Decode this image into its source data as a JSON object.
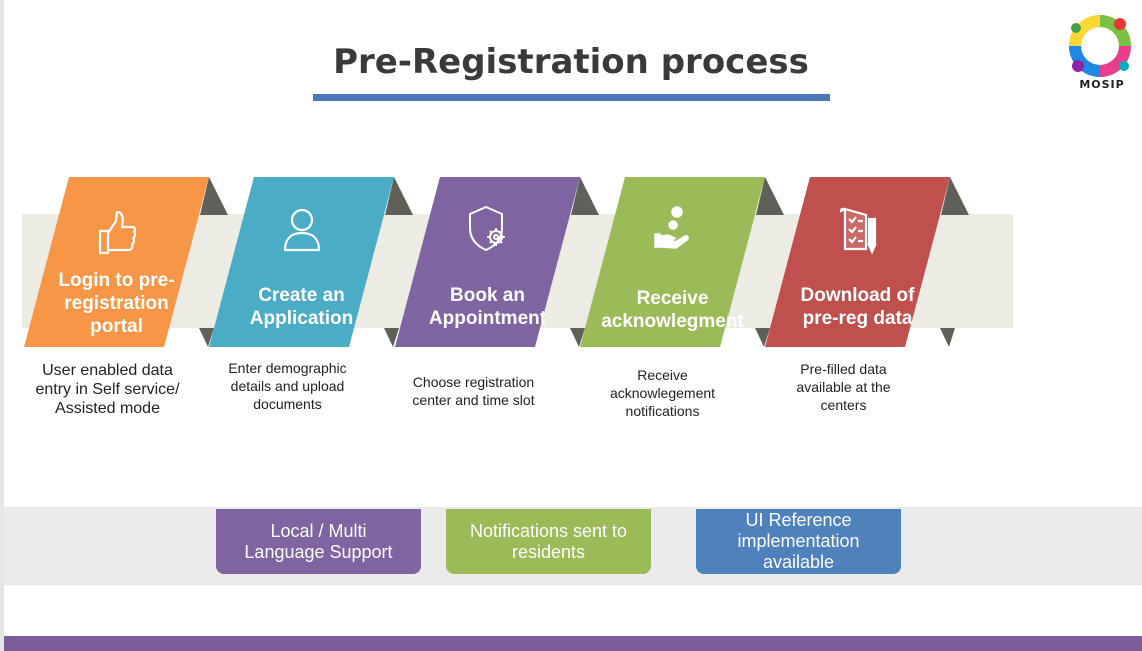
{
  "title": "Pre-Registration process",
  "logo": {
    "text": "MOSIP"
  },
  "colors": {
    "orange": "#f79646",
    "teal": "#4bacc6",
    "purple": "#8064a2",
    "green": "#9bbb59",
    "red": "#c0504d",
    "title_rule": "#4a78b8",
    "fold": "#5f605a",
    "footer": "#7a5c9c"
  },
  "steps": [
    {
      "label": [
        "Login to pre-",
        "registration",
        "portal"
      ],
      "icon": "thumbs-up-icon",
      "color": "#f79646",
      "description": [
        "User enabled data",
        "entry in Self service/",
        "Assisted mode"
      ]
    },
    {
      "label": [
        "Create an",
        "Application"
      ],
      "icon": "user-icon",
      "color": "#4bacc6",
      "description": [
        "Enter demographic",
        "details and upload",
        "documents"
      ]
    },
    {
      "label": [
        "Book an",
        "Appointment"
      ],
      "icon": "shield-gear-icon",
      "color": "#8064a2",
      "description": [
        "Choose registration",
        "center and time slot"
      ]
    },
    {
      "label": [
        "Receive",
        "acknowlegment"
      ],
      "icon": "hand-coin-icon",
      "color": "#9bbb59",
      "description": [
        "Receive",
        "acknowlegement",
        "notifications"
      ]
    },
    {
      "label": [
        "Download of",
        "pre-reg data"
      ],
      "icon": "documents-icon",
      "color": "#c0504d",
      "description": [
        "Pre-filled data",
        "available at the",
        "centers"
      ]
    }
  ],
  "features": [
    {
      "label": [
        "Local / Multi",
        "Language Support"
      ],
      "color": "#8064a2"
    },
    {
      "label": [
        "Notifications sent to",
        "residents"
      ],
      "color": "#9bbb59"
    },
    {
      "label": [
        "UI Reference",
        "implementation",
        "available"
      ],
      "color": "#4f81bd"
    }
  ]
}
